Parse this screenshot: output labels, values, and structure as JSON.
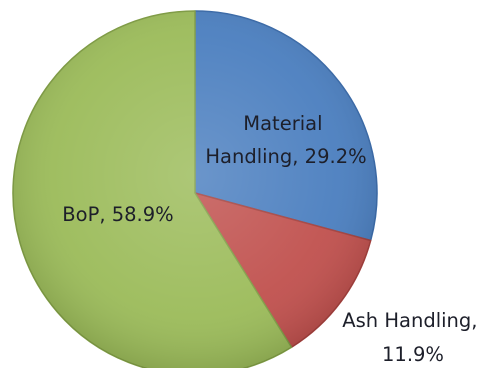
{
  "chart_data": {
    "type": "pie",
    "title": "",
    "legend": "none",
    "slices": [
      {
        "name": "Material Handling",
        "value": 29.2,
        "label_lines": [
          "Material",
          "Handling, 29.2%"
        ],
        "color": "#4a7ebf",
        "stroke": "#3a6aa8"
      },
      {
        "name": "Ash Handling",
        "value": 11.9,
        "label_lines": [
          "Ash Handling,",
          "11.9%"
        ],
        "color": "#c0504d",
        "stroke": "#a23f3c"
      },
      {
        "name": "BoP",
        "value": 58.9,
        "label_lines": [
          "BoP, 58.9%"
        ],
        "color": "#9bbb59",
        "stroke": "#7f9c44"
      }
    ]
  }
}
